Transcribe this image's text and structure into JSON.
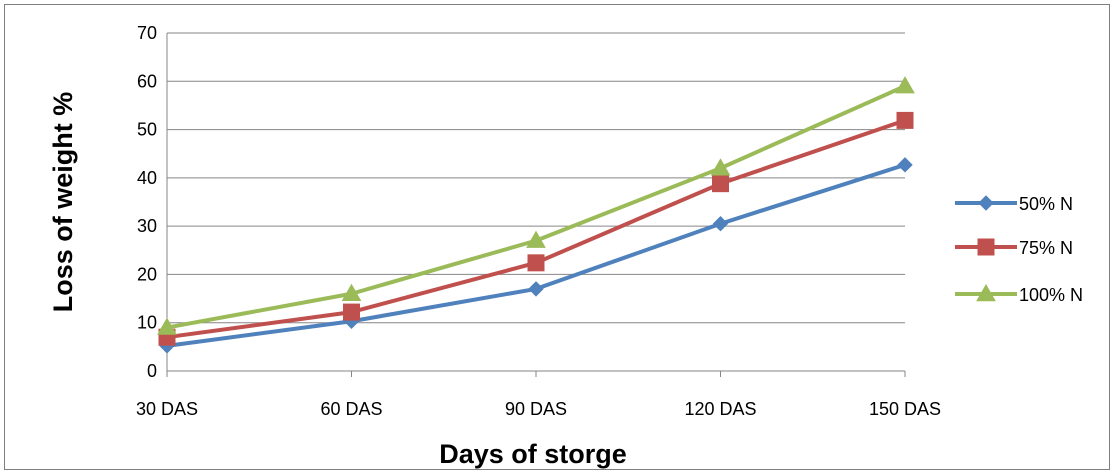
{
  "chart_data": {
    "type": "line",
    "title": "",
    "xlabel": "Days of storge",
    "ylabel": "Loss of weight %",
    "categories": [
      "30 DAS",
      "60 DAS",
      "90 DAS",
      "120 DAS",
      "150 DAS"
    ],
    "ylim": [
      0,
      70
    ],
    "yticks": [
      "0",
      "10",
      "20",
      "30",
      "40",
      "50",
      "60",
      "70"
    ],
    "grid": true,
    "legend_position": "right",
    "series": [
      {
        "name": "50% N",
        "color": "#4f81bd",
        "marker": "diamond",
        "values": [
          5.2,
          10.3,
          17.0,
          30.5,
          42.7
        ]
      },
      {
        "name": "75% N",
        "color": "#c0504d",
        "marker": "square",
        "values": [
          7.0,
          12.2,
          22.4,
          38.8,
          51.9
        ]
      },
      {
        "name": "100% N",
        "color": "#9bbb59",
        "marker": "triangle",
        "values": [
          9.0,
          16.0,
          27.0,
          42.0,
          59.0
        ]
      }
    ]
  }
}
